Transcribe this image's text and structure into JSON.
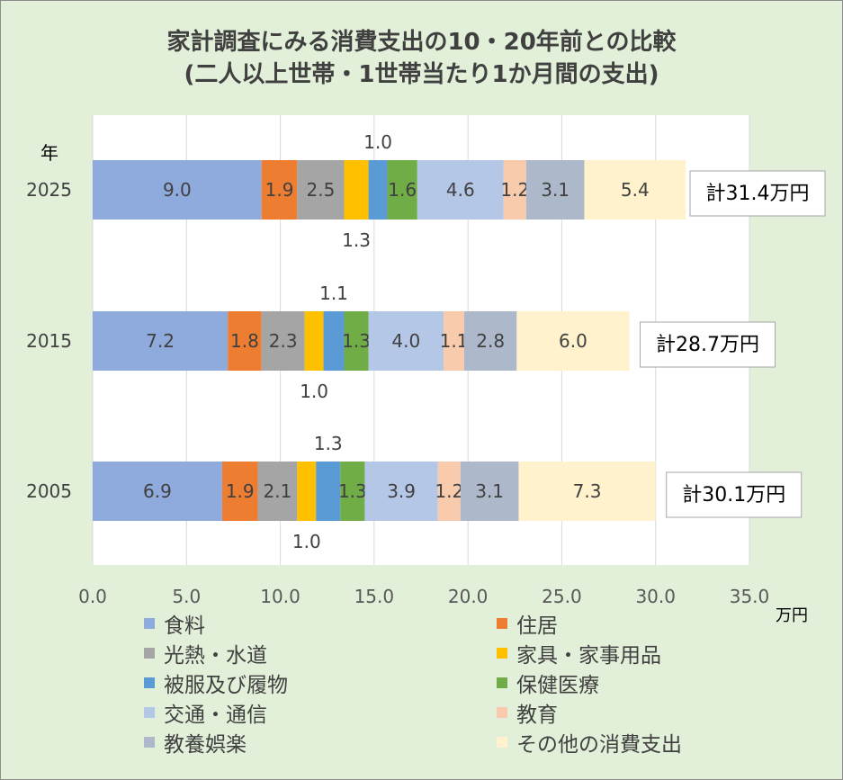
{
  "title": "家計調査にみる消費支出の10・20年前との比較",
  "subtitle": "(二人以上世帯・1世帯当たり1か月間の支出)",
  "chart_data": {
    "type": "bar",
    "orientation": "horizontal",
    "stacked": true,
    "y_axis_title": "年",
    "x_unit_label": "万円",
    "xlim": [
      0,
      35
    ],
    "x_ticks": [
      "0.0",
      "5.0",
      "10.0",
      "15.0",
      "20.0",
      "25.0",
      "30.0",
      "35.0"
    ],
    "grid": "vertical",
    "legend_position": "bottom",
    "categories": [
      "2025",
      "2015",
      "2005"
    ],
    "series": [
      {
        "name": "食料",
        "color": "#8faadc",
        "values": [
          9.0,
          7.2,
          6.9
        ]
      },
      {
        "name": "住居",
        "color": "#ed7d31",
        "values": [
          1.9,
          1.8,
          1.9
        ]
      },
      {
        "name": "光熱・水道",
        "color": "#a5a5a5",
        "values": [
          2.5,
          2.3,
          2.1
        ]
      },
      {
        "name": "家具・家事用品",
        "color": "#ffc000",
        "values": [
          1.3,
          1.0,
          1.0
        ]
      },
      {
        "name": "被服及び履物",
        "color": "#5b9bd5",
        "values": [
          1.0,
          1.1,
          1.3
        ]
      },
      {
        "name": "保健医療",
        "color": "#70ad47",
        "values": [
          1.6,
          1.3,
          1.3
        ]
      },
      {
        "name": "交通・通信",
        "color": "#b4c7e7",
        "values": [
          4.6,
          4.0,
          3.9
        ]
      },
      {
        "name": "教育",
        "color": "#f8cbad",
        "values": [
          1.2,
          1.1,
          1.2
        ]
      },
      {
        "name": "教養娯楽",
        "color": "#adb9ca",
        "values": [
          3.1,
          2.8,
          3.1
        ]
      },
      {
        "name": "その他の消費支出",
        "color": "#fff2cc",
        "values": [
          5.4,
          6.0,
          7.3
        ]
      }
    ],
    "data_labels": [
      [
        "9.0",
        "1.9",
        "2.5",
        "1.3",
        "1.0",
        "1.6",
        "4.6",
        "1.2",
        "3.1",
        "5.4"
      ],
      [
        "7.2",
        "1.8",
        "2.3",
        "1.0",
        "1.1",
        "1.3",
        "4.0",
        "1.1",
        "2.8",
        "6.0"
      ],
      [
        "6.9",
        "1.9",
        "2.1",
        "1.0",
        "1.3",
        "1.3",
        "3.9",
        "1.2",
        "3.1",
        "7.3"
      ]
    ],
    "totals": [
      "計31.4万円",
      "計28.7万円",
      "計30.1万円"
    ]
  }
}
